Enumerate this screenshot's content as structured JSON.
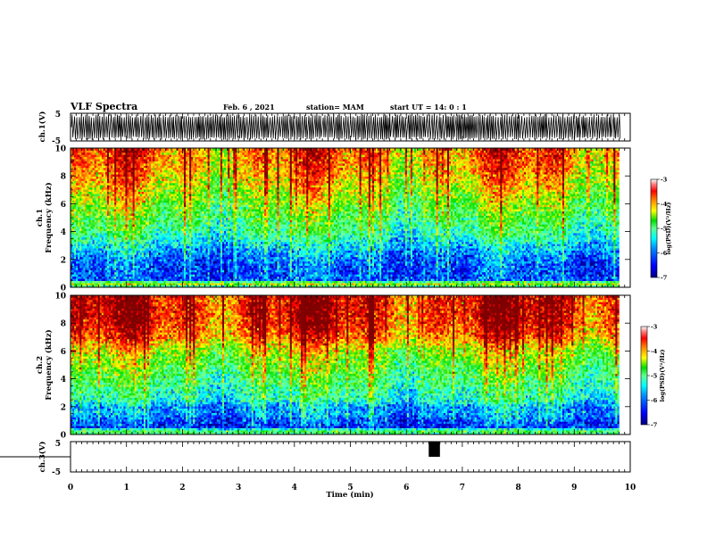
{
  "header": {
    "title": "VLF Spectra",
    "date": "Feb. 6 , 2021",
    "station": "station= MAM",
    "start_ut": "start  UT =   14: 0  : 1"
  },
  "chart_data": [
    {
      "panel": "ch1-waveform",
      "type": "line",
      "ylabel": "ch.1(V)",
      "ylim": [
        -5,
        5
      ],
      "yticks": [
        "5",
        "-5"
      ],
      "xlim": [
        0,
        10
      ],
      "description_of_signal": "dense oscillation saturating between -5 and 5 V for 0 to 9.8 min",
      "data_end_min": 9.8
    },
    {
      "panel": "ch1-spectrogram",
      "type": "heatmap",
      "ylabel_prefix": "ch.1",
      "ylabel": "Frequency (kHz)",
      "ylim": [
        0,
        10
      ],
      "yticks": [
        "0",
        "2",
        "4",
        "6",
        "8",
        "10"
      ],
      "xlim": [
        0,
        10
      ],
      "data_end_min": 9.8,
      "colorbar": {
        "label": "log(PSD)(V²/Hz)",
        "range": [
          -7,
          -3
        ],
        "ticks": [
          "-3",
          "-4",
          "-5",
          "-6",
          "-7"
        ]
      },
      "mean_log_psd_profile": {
        "freq_khz": [
          0,
          0.3,
          0.5,
          1,
          1.5,
          2,
          2.5,
          3,
          3.5,
          4,
          5,
          6,
          7,
          8,
          9,
          10
        ],
        "log_psd": [
          -5.6,
          -4.2,
          -6.3,
          -6.3,
          -6.3,
          -6.2,
          -6.0,
          -5.8,
          -5.5,
          -5.3,
          -5.0,
          -4.7,
          -4.4,
          -4.1,
          -3.9,
          -3.8
        ]
      }
    },
    {
      "panel": "ch2-spectrogram",
      "type": "heatmap",
      "ylabel_prefix": "ch.2",
      "ylabel": "Frequency (kHz)",
      "ylim": [
        0,
        10
      ],
      "yticks": [
        "0",
        "2",
        "4",
        "6",
        "8",
        "10"
      ],
      "xlim": [
        0,
        10
      ],
      "data_end_min": 9.8,
      "colorbar": {
        "label": "log(PSD)(V²/Hz)",
        "range": [
          -7,
          -3
        ],
        "ticks": [
          "-3",
          "-4",
          "-5",
          "-6",
          "-7"
        ]
      },
      "mean_log_psd_profile": {
        "freq_khz": [
          0,
          0.3,
          0.5,
          1,
          1.5,
          2,
          2.5,
          3,
          4,
          5,
          6,
          7,
          8,
          9,
          10
        ],
        "log_psd": [
          -5.3,
          -5.0,
          -6.4,
          -6.3,
          -6.0,
          -6.0,
          -5.5,
          -5.4,
          -5.1,
          -4.8,
          -4.5,
          -3.8,
          -3.5,
          -3.4,
          -3.4
        ]
      }
    },
    {
      "panel": "ch3-waveform",
      "type": "line",
      "ylabel": "ch.3(V)",
      "ylim": [
        -5,
        5
      ],
      "yticks": [
        "5",
        "-5"
      ],
      "xlim": [
        0,
        10
      ],
      "xticks": [
        "0",
        "1",
        "2",
        "3",
        "4",
        "5",
        "6",
        "7",
        "8",
        "9",
        "10"
      ],
      "xlabel": "Time (min)",
      "baseline_v": 0,
      "pulse": {
        "start_min": 6.4,
        "end_min": 6.6,
        "low_v": 0,
        "high_v": 5
      }
    }
  ],
  "colors": {
    "colormap": [
      "#00007f",
      "#0000ff",
      "#0080ff",
      "#00ffff",
      "#80ff80",
      "#00e000",
      "#ffff00",
      "#ff8000",
      "#ff0000",
      "#7f0000"
    ]
  }
}
